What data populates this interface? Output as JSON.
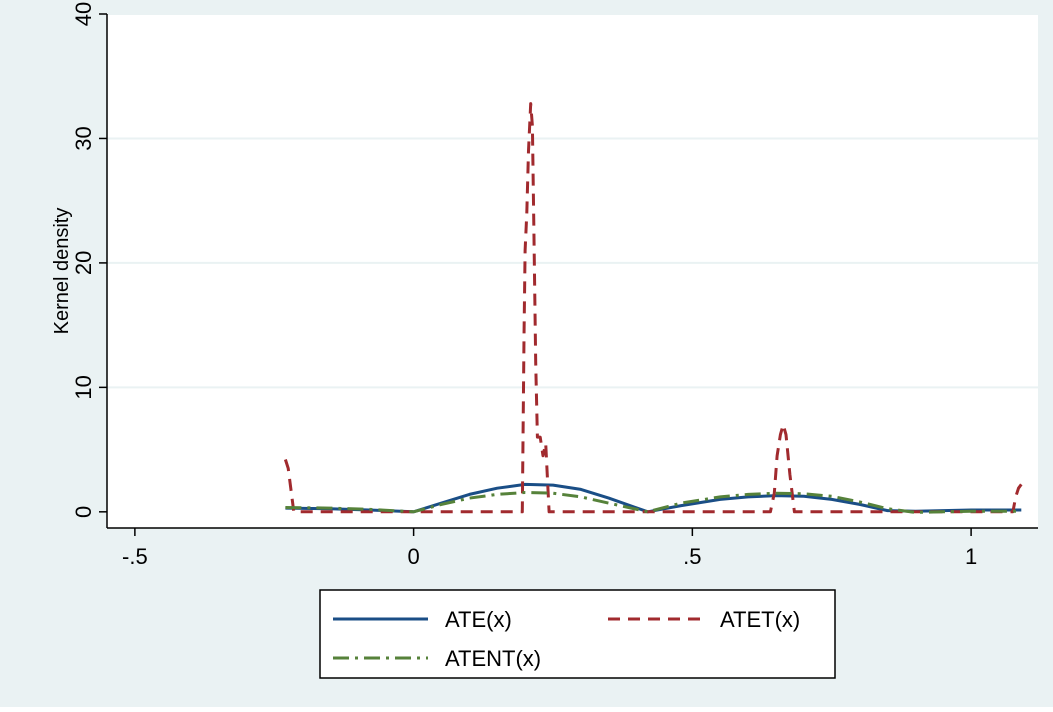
{
  "colors": {
    "outer_background": "#eaf2f3",
    "plot_background": "#ffffff",
    "grid": "#eaf2f3",
    "axis": "#000000",
    "legend_background": "#ffffff"
  },
  "chart_data": {
    "type": "line",
    "title": "",
    "xlabel": "",
    "ylabel": "Kernel density",
    "xlim": [
      -0.55,
      1.12
    ],
    "ylim": [
      -1.3,
      40
    ],
    "x_ticks": [
      {
        "value": -0.5,
        "label": "-.5"
      },
      {
        "value": 0,
        "label": "0"
      },
      {
        "value": 0.5,
        "label": ".5"
      },
      {
        "value": 1,
        "label": "1"
      }
    ],
    "y_ticks": [
      {
        "value": 0,
        "label": "0"
      },
      {
        "value": 10,
        "label": "10"
      },
      {
        "value": 20,
        "label": "20"
      },
      {
        "value": 30,
        "label": "30"
      },
      {
        "value": 40,
        "label": "40"
      }
    ],
    "grid": true,
    "legend_position": "bottom",
    "series": [
      {
        "name": "ATE(x)",
        "color": "#1a4e86",
        "dash": "solid",
        "points": [
          [
            -0.23,
            0.3
          ],
          [
            -0.15,
            0.25
          ],
          [
            -0.08,
            0.15
          ],
          [
            0,
            0.0
          ],
          [
            0.05,
            0.7
          ],
          [
            0.1,
            1.4
          ],
          [
            0.15,
            1.9
          ],
          [
            0.2,
            2.2
          ],
          [
            0.25,
            2.15
          ],
          [
            0.3,
            1.8
          ],
          [
            0.35,
            1.1
          ],
          [
            0.42,
            0.0
          ],
          [
            0.48,
            0.5
          ],
          [
            0.55,
            1.0
          ],
          [
            0.6,
            1.2
          ],
          [
            0.65,
            1.3
          ],
          [
            0.7,
            1.25
          ],
          [
            0.75,
            1.0
          ],
          [
            0.8,
            0.6
          ],
          [
            0.85,
            0.1
          ],
          [
            0.9,
            0.05
          ],
          [
            0.95,
            0.1
          ],
          [
            1.0,
            0.15
          ],
          [
            1.05,
            0.15
          ],
          [
            1.09,
            0.15
          ]
        ]
      },
      {
        "name": "ATET(x)",
        "color": "#a12a2e",
        "dash": "dashed",
        "points": [
          [
            -0.23,
            4.2
          ],
          [
            -0.225,
            3.5
          ],
          [
            -0.215,
            0.0
          ],
          [
            -0.1,
            0.0
          ],
          [
            0.1,
            0.0
          ],
          [
            0.195,
            0.0
          ],
          [
            0.198,
            14
          ],
          [
            0.2,
            21
          ],
          [
            0.203,
            24
          ],
          [
            0.206,
            29
          ],
          [
            0.21,
            32.8
          ],
          [
            0.213,
            31
          ],
          [
            0.216,
            22
          ],
          [
            0.219,
            12
          ],
          [
            0.222,
            6
          ],
          [
            0.227,
            6
          ],
          [
            0.232,
            4.5
          ],
          [
            0.237,
            5.5
          ],
          [
            0.243,
            0.0
          ],
          [
            0.3,
            0.0
          ],
          [
            0.5,
            0.0
          ],
          [
            0.64,
            0.0
          ],
          [
            0.647,
            1.5
          ],
          [
            0.652,
            4.5
          ],
          [
            0.658,
            6.2
          ],
          [
            0.663,
            7.0
          ],
          [
            0.668,
            6.2
          ],
          [
            0.675,
            3.0
          ],
          [
            0.683,
            0.0
          ],
          [
            0.75,
            0.0
          ],
          [
            0.9,
            0.0
          ],
          [
            1.05,
            0.0
          ],
          [
            1.075,
            0.0
          ],
          [
            1.08,
            1.2
          ],
          [
            1.085,
            1.9
          ],
          [
            1.09,
            2.2
          ]
        ]
      },
      {
        "name": "ATENT(x)",
        "color": "#56823a",
        "dash": "dashdot",
        "points": [
          [
            -0.23,
            0.35
          ],
          [
            -0.15,
            0.3
          ],
          [
            -0.08,
            0.2
          ],
          [
            0,
            0.0
          ],
          [
            0.05,
            0.6
          ],
          [
            0.1,
            1.1
          ],
          [
            0.15,
            1.4
          ],
          [
            0.2,
            1.55
          ],
          [
            0.25,
            1.5
          ],
          [
            0.3,
            1.2
          ],
          [
            0.35,
            0.7
          ],
          [
            0.42,
            0.0
          ],
          [
            0.48,
            0.7
          ],
          [
            0.55,
            1.2
          ],
          [
            0.6,
            1.4
          ],
          [
            0.65,
            1.5
          ],
          [
            0.7,
            1.45
          ],
          [
            0.75,
            1.25
          ],
          [
            0.8,
            0.8
          ],
          [
            0.85,
            0.25
          ],
          [
            0.9,
            -0.05
          ],
          [
            0.95,
            0.0
          ],
          [
            1.0,
            0.05
          ],
          [
            1.05,
            0.05
          ],
          [
            1.09,
            0.05
          ]
        ]
      }
    ]
  }
}
